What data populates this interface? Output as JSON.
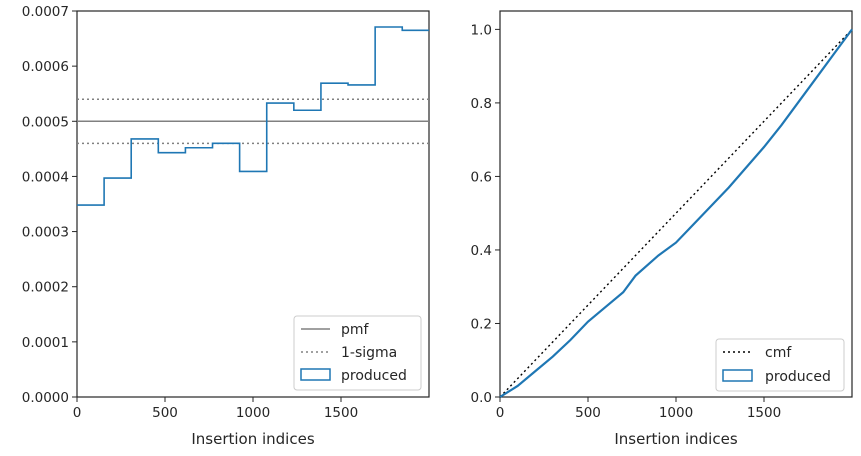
{
  "chart_data": [
    {
      "type": "line",
      "xlabel": "Insertion indices",
      "ylabel": "",
      "xlim": [
        0,
        2000
      ],
      "ylim": [
        0,
        0.0007
      ],
      "xticks": [
        0,
        500,
        1000,
        1500
      ],
      "xtick_labels": [
        "0",
        "500",
        "1000",
        "1500"
      ],
      "yticks": [
        0,
        0.0001,
        0.0002,
        0.0003,
        0.0004,
        0.0005,
        0.0006,
        0.0007
      ],
      "ytick_labels": [
        "0.0000",
        "0.0001",
        "0.0002",
        "0.0003",
        "0.0004",
        "0.0005",
        "0.0006",
        "0.0007"
      ],
      "grid": false,
      "legend_position": "bottom-right",
      "hlines": [
        {
          "name": "pmf",
          "y": 0.0005,
          "color": "#808080",
          "style": "solid"
        },
        {
          "name": "1-sigma",
          "y": 0.00054,
          "color": "#808080",
          "style": "dotted"
        },
        {
          "name": "1-sigma",
          "y": 0.00046,
          "color": "#808080",
          "style": "dotted"
        }
      ],
      "step_series": {
        "name": "produced",
        "color": "#1f77b4",
        "bin_edges": [
          0,
          154,
          308,
          462,
          616,
          770,
          924,
          1078,
          1232,
          1386,
          1540,
          1694,
          1848,
          2000
        ],
        "values": [
          0.000348,
          0.000397,
          0.000468,
          0.000443,
          0.000452,
          0.00046,
          0.000409,
          0.000533,
          0.00052,
          0.000569,
          0.000566,
          0.000671,
          0.000665
        ]
      },
      "legend": [
        {
          "label": "pmf",
          "kind": "solid-line",
          "color": "#808080"
        },
        {
          "label": "1-sigma",
          "kind": "dotted-line",
          "color": "#808080"
        },
        {
          "label": "produced",
          "kind": "box",
          "color": "#1f77b4"
        }
      ]
    },
    {
      "type": "line",
      "xlabel": "Insertion indices",
      "ylabel": "",
      "xlim": [
        0,
        2000
      ],
      "ylim": [
        0,
        1.05
      ],
      "xticks": [
        0,
        500,
        1000,
        1500
      ],
      "xtick_labels": [
        "0",
        "500",
        "1000",
        "1500"
      ],
      "yticks": [
        0,
        0.2,
        0.4,
        0.6,
        0.8,
        1.0
      ],
      "ytick_labels": [
        "0.0",
        "0.2",
        "0.4",
        "0.6",
        "0.8",
        "1.0"
      ],
      "grid": false,
      "legend_position": "bottom-right",
      "series": [
        {
          "name": "cmf",
          "color": "#000000",
          "style": "dotted",
          "x": [
            0,
            2000
          ],
          "y": [
            0,
            1.0
          ]
        },
        {
          "name": "produced",
          "color": "#1f77b4",
          "style": "solid",
          "x": [
            0,
            100,
            200,
            300,
            400,
            500,
            600,
            700,
            770,
            900,
            1000,
            1100,
            1200,
            1300,
            1400,
            1500,
            1600,
            1700,
            1800,
            1900,
            2000
          ],
          "y": [
            0,
            0.03,
            0.07,
            0.11,
            0.155,
            0.205,
            0.245,
            0.285,
            0.33,
            0.385,
            0.42,
            0.47,
            0.52,
            0.57,
            0.625,
            0.68,
            0.74,
            0.805,
            0.87,
            0.935,
            1.0
          ]
        }
      ],
      "legend": [
        {
          "label": "cmf",
          "kind": "dotted-line",
          "color": "#000000"
        },
        {
          "label": "produced",
          "kind": "box",
          "color": "#1f77b4"
        }
      ]
    }
  ]
}
